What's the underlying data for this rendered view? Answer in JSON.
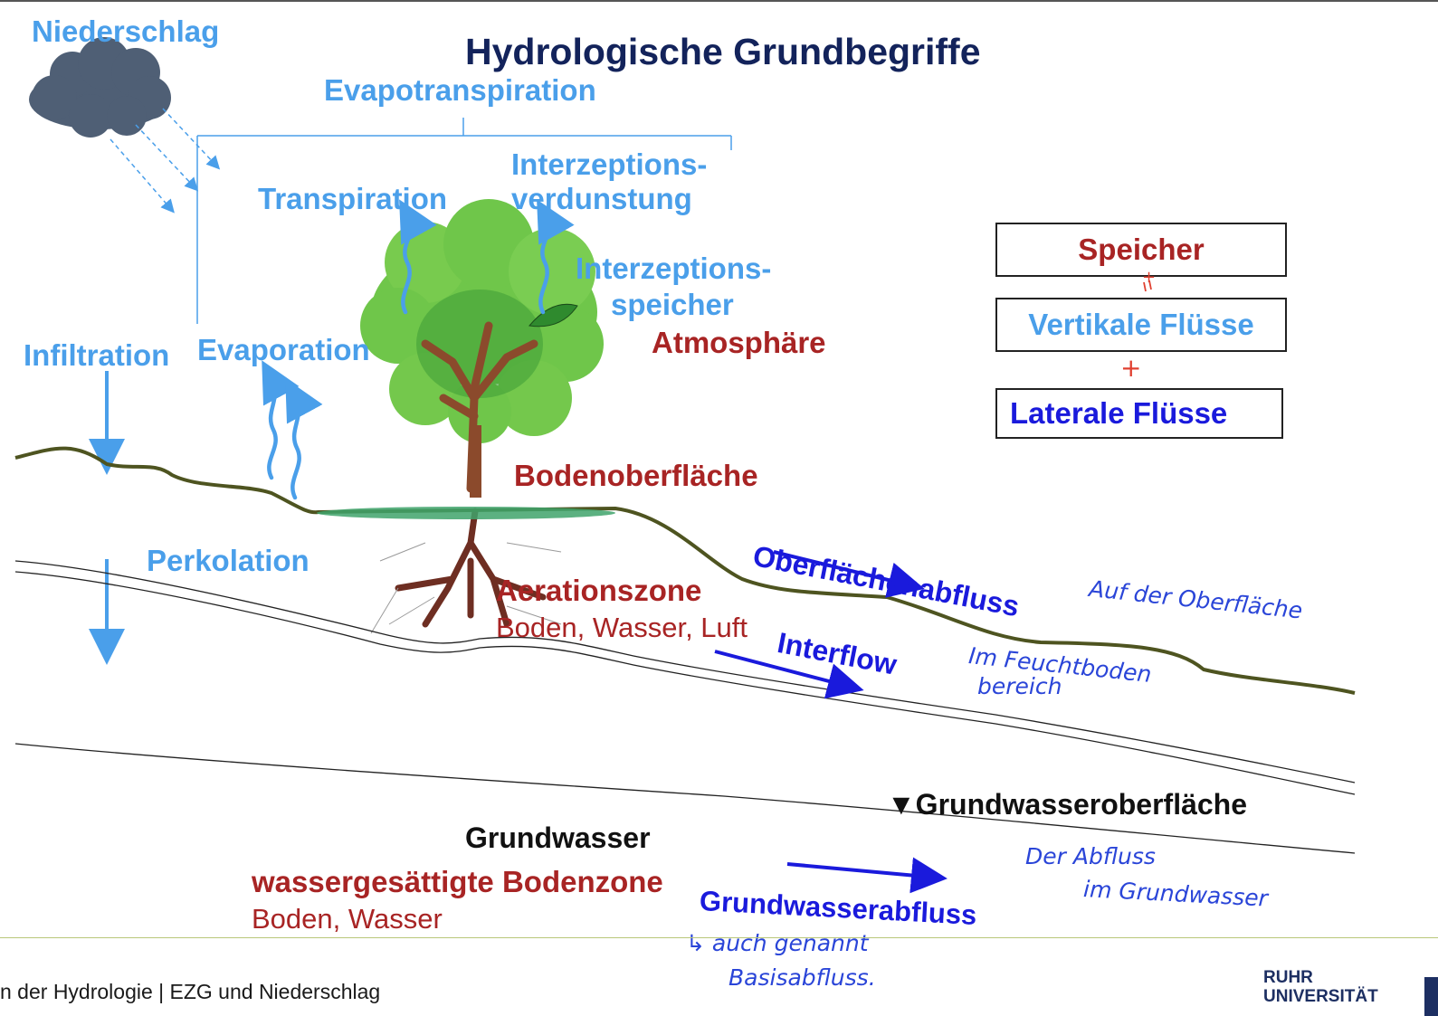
{
  "title": "Hydrologische Grundbegriffe",
  "labels": {
    "niederschlag": "Niederschlag",
    "evapotranspiration": "Evapotranspiration",
    "transpiration": "Transpiration",
    "interzeptionsverdunstung_1": "Interzeptions-",
    "interzeptionsverdunstung_2": "verdunstung",
    "interzeptionsspeicher_1": "Interzeptions-",
    "interzeptionsspeicher_2": "speicher",
    "atmosphaere": "Atmosphäre",
    "infiltration": "Infiltration",
    "evaporation": "Evaporation",
    "bodenoberflaeche": "Bodenoberfläche",
    "perkolation": "Perkolation",
    "aerationszone": "Aerationszone",
    "aerationszone_sub": "Boden, Wasser, Luft",
    "oberflaechenabfluss": "Oberflächenabfluss",
    "interflow": "Interflow",
    "grundwasseroberflaeche": "▼Grundwasseroberfläche",
    "grundwasser": "Grundwasser",
    "gesaettigte_zone": "wassergesättigte Bodenzone",
    "gesaettigte_zone_sub": "Boden, Wasser",
    "grundwasserabfluss": "Grundwasserabfluss"
  },
  "legend_boxes": {
    "speicher": "Speicher",
    "plus_1": "+",
    "vertikal": "Vertikale Flüsse",
    "plus_2": "+",
    "lateral": "Laterale Flüsse"
  },
  "handwritten_notes": {
    "oberflaeche": "Auf der Oberfläche",
    "interflow_1": "Im Feuchtboden",
    "interflow_2": "bereich",
    "grundwasser_1": "Der Abfluss",
    "grundwasser_2": "im Grundwasser",
    "basis_1": "↳ auch genannt",
    "basis_2": "Basisabfluss."
  },
  "footer": {
    "text": "n der Hydrologie | EZG und Niederschlag",
    "logo_line1": "RUHR",
    "logo_line2": "UNIVERSITÄT"
  },
  "colors": {
    "label_blue": "#4a9fea",
    "flow_blue": "#1a1adc",
    "storage_red": "#a82424",
    "ground_line": "#4e5420",
    "title_navy": "#13235b",
    "cloud": "#4f5f75",
    "tree_green": "#6fc64a",
    "trunk": "#8b4a2c"
  }
}
